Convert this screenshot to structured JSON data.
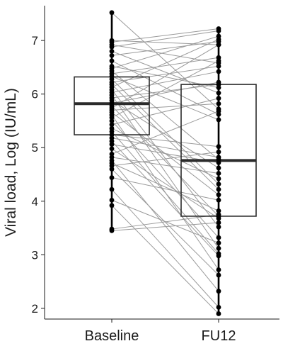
{
  "chart_data": {
    "type": "scatter",
    "subtype": "paired boxplot",
    "title": "",
    "xlabel": "",
    "ylabel": "Viral load, Log (IU/mL)",
    "categories": [
      "Baseline",
      "FU12"
    ],
    "ylim": [
      1.8,
      7.65
    ],
    "yticks": [
      2,
      3,
      4,
      5,
      6,
      7
    ],
    "grid": false,
    "legend": "none",
    "colors": {
      "points": "#000000",
      "pair_lines": "#9a9a9a",
      "box": "#2b2b2b",
      "axes": "#1a1a1a"
    },
    "boxes": [
      {
        "category": "Baseline",
        "q1": 5.24,
        "median": 5.82,
        "q3": 6.32
      },
      {
        "category": "FU12",
        "q1": 3.72,
        "median": 4.76,
        "q3": 6.18
      }
    ],
    "pairs": [
      [
        7.52,
        5.72
      ],
      [
        7.0,
        6.92
      ],
      [
        6.97,
        7.22
      ],
      [
        6.92,
        6.58
      ],
      [
        6.88,
        7.18
      ],
      [
        6.8,
        6.02
      ],
      [
        6.72,
        6.98
      ],
      [
        6.62,
        5.62
      ],
      [
        6.52,
        6.12
      ],
      [
        6.48,
        7.08
      ],
      [
        6.43,
        4.78
      ],
      [
        6.38,
        6.68
      ],
      [
        6.33,
        5.52
      ],
      [
        6.28,
        4.32
      ],
      [
        6.22,
        6.52
      ],
      [
        6.18,
        4.22
      ],
      [
        6.13,
        7.02
      ],
      [
        6.08,
        3.52
      ],
      [
        6.03,
        6.42
      ],
      [
        5.98,
        3.12
      ],
      [
        5.93,
        6.18
      ],
      [
        5.88,
        4.62
      ],
      [
        5.83,
        6.22
      ],
      [
        5.78,
        3.72
      ],
      [
        5.74,
        6.92
      ],
      [
        5.7,
        5.82
      ],
      [
        5.66,
        4.12
      ],
      [
        5.61,
        2.72
      ],
      [
        5.56,
        6.62
      ],
      [
        5.5,
        3.32
      ],
      [
        5.43,
        5.92
      ],
      [
        5.36,
        4.42
      ],
      [
        5.3,
        3.02
      ],
      [
        5.24,
        5.02
      ],
      [
        5.18,
        4.82
      ],
      [
        5.12,
        2.98
      ],
      [
        5.06,
        4.72
      ],
      [
        4.98,
        3.68
      ],
      [
        4.88,
        5.68
      ],
      [
        4.82,
        4.52
      ],
      [
        4.76,
        2.32
      ],
      [
        4.71,
        3.82
      ],
      [
        4.66,
        4.92
      ],
      [
        4.6,
        2.62
      ],
      [
        4.44,
        4.02
      ],
      [
        4.22,
        2.02
      ],
      [
        4.02,
        3.22
      ],
      [
        3.92,
        1.9
      ],
      [
        3.48,
        3.75
      ],
      [
        3.45,
        3.6
      ]
    ]
  }
}
